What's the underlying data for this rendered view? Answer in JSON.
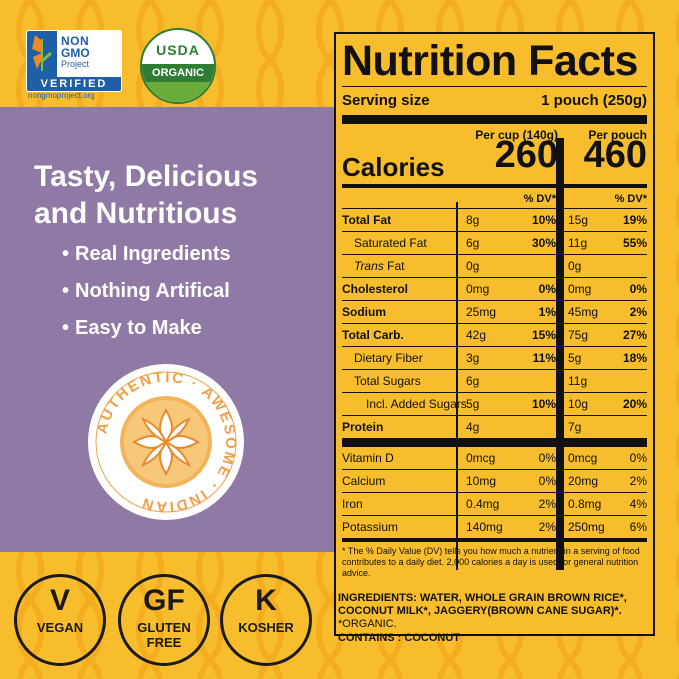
{
  "certifications": {
    "nongmo": {
      "line1": "NON",
      "line2": "GMO",
      "line3": "Project",
      "verified": "VERIFIED",
      "url": "nongmoproject.org"
    },
    "usda": {
      "top": "USDA",
      "band": "ORGANIC"
    }
  },
  "headline": {
    "line1": "Tasty, Delicious",
    "line2": "and Nutritious"
  },
  "bullets": [
    "Real Ingredients",
    "Nothing Artifical",
    "Easy to Make"
  ],
  "badge": {
    "ring_text": "AUTHENTIC · AWESOME · INDIAN"
  },
  "diet_icons": [
    {
      "big": "V",
      "small1": "VEGAN",
      "small2": ""
    },
    {
      "big": "GF",
      "small1": "GLUTEN",
      "small2": "FREE"
    },
    {
      "big": "K",
      "small1": "KOSHER",
      "small2": ""
    }
  ],
  "nutrition": {
    "title": "Nutrition Facts",
    "serving_label": "Serving size",
    "serving_value": "1 pouch (250g)",
    "col1_head": "Per cup (140g)",
    "col2_head": "Per pouch",
    "calories_label": "Calories",
    "calories1": "260",
    "calories2": "460",
    "dv_label": "% DV*",
    "rows": [
      {
        "name": "Total Fat",
        "bold": true,
        "indent": 0,
        "a1": "8g",
        "d1": "10%",
        "a2": "15g",
        "d2": "19%"
      },
      {
        "name": "Saturated Fat",
        "bold": false,
        "indent": 1,
        "a1": "6g",
        "d1": "30%",
        "a2": "11g",
        "d2": "55%"
      },
      {
        "name": "Trans Fat",
        "bold": false,
        "indent": 1,
        "a1": "0g",
        "d1": "",
        "a2": "0g",
        "d2": ""
      },
      {
        "name": "Cholesterol",
        "bold": true,
        "indent": 0,
        "a1": "0mg",
        "d1": "0%",
        "a2": "0mg",
        "d2": "0%"
      },
      {
        "name": "Sodium",
        "bold": true,
        "indent": 0,
        "a1": "25mg",
        "d1": "1%",
        "a2": "45mg",
        "d2": "2%"
      },
      {
        "name": "Total Carb.",
        "bold": true,
        "indent": 0,
        "a1": "42g",
        "d1": "15%",
        "a2": "75g",
        "d2": "27%"
      },
      {
        "name": "Dietary Fiber",
        "bold": false,
        "indent": 1,
        "a1": "3g",
        "d1": "11%",
        "a2": "5g",
        "d2": "18%"
      },
      {
        "name": "Total Sugars",
        "bold": false,
        "indent": 1,
        "a1": "6g",
        "d1": "",
        "a2": "11g",
        "d2": ""
      },
      {
        "name": "Incl. Added Sugars",
        "bold": false,
        "indent": 2,
        "a1": "5g",
        "d1": "10%",
        "a2": "10g",
        "d2": "20%"
      },
      {
        "name": "Protein",
        "bold": true,
        "indent": 0,
        "a1": "4g",
        "d1": "",
        "a2": "7g",
        "d2": ""
      }
    ],
    "vitamins": [
      {
        "name": "Vitamin D",
        "a1": "0mcg",
        "d1": "0%",
        "a2": "0mcg",
        "d2": "0%"
      },
      {
        "name": "Calcium",
        "a1": "10mg",
        "d1": "0%",
        "a2": "20mg",
        "d2": "2%"
      },
      {
        "name": "Iron",
        "a1": "0.4mg",
        "d1": "2%",
        "a2": "0.8mg",
        "d2": "4%"
      },
      {
        "name": "Potassium",
        "a1": "140mg",
        "d1": "2%",
        "a2": "250mg",
        "d2": "6%"
      }
    ],
    "footnote": "* The % Daily Value (DV) tells you how much a nutrient in a serving of food contributes to a daily diet. 2,000 calories a day is used for general nutrition advice."
  },
  "ingredients": {
    "text": "INGREDIENTS: WATER, WHOLE GRAIN BROWN RICE*, COCONUT MILK*, JAGGERY(BROWN CANE SUGAR)*.",
    "organic_note": "*ORGANIC.",
    "contains": "CONTAINS : COCONUT"
  },
  "colors": {
    "background": "#f7bd2c",
    "purple": "#8f7aa6",
    "badge_orange": "#f0a04a",
    "ink": "#111111"
  }
}
